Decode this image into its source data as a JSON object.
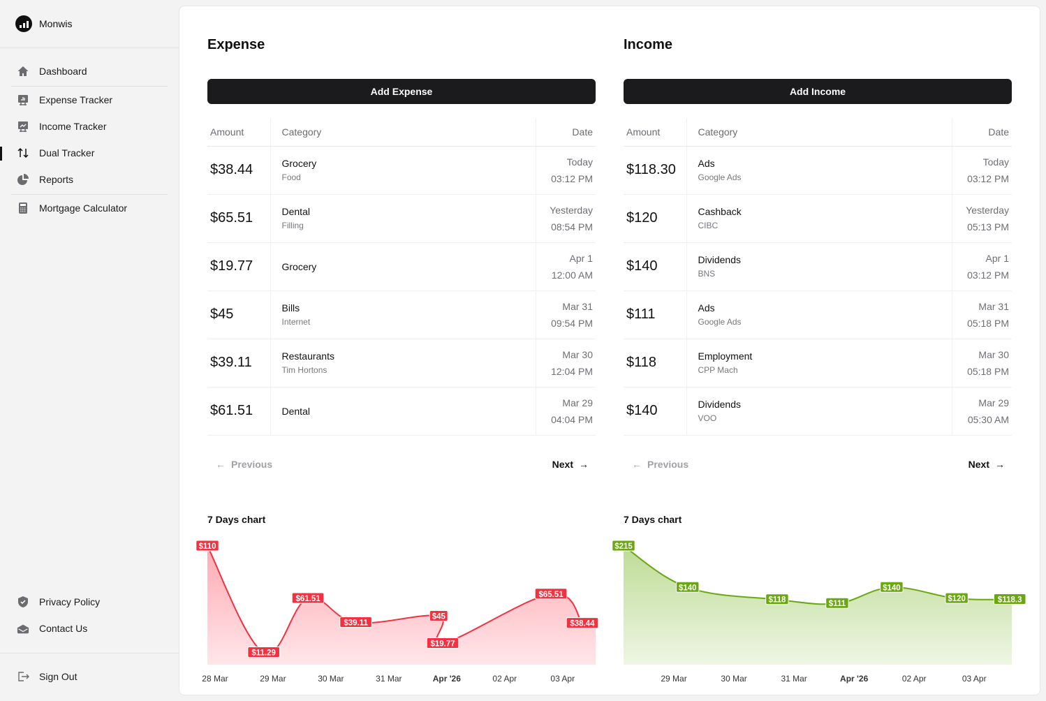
{
  "app": {
    "name": "Monwis"
  },
  "sidebar": {
    "items": [
      {
        "label": "Dashboard",
        "icon": "home-icon"
      },
      {
        "label": "Expense Tracker",
        "icon": "bar-chart-board-icon"
      },
      {
        "label": "Income Tracker",
        "icon": "line-chart-board-icon"
      },
      {
        "label": "Dual Tracker",
        "icon": "arrows-up-down-icon",
        "active": true
      },
      {
        "label": "Reports",
        "icon": "pie-chart-icon"
      },
      {
        "label": "Mortgage Calculator",
        "icon": "calculator-icon"
      }
    ],
    "footer": [
      {
        "label": "Privacy Policy",
        "icon": "shield-check-icon"
      },
      {
        "label": "Contact Us",
        "icon": "envelope-open-icon"
      }
    ],
    "sign_out": {
      "label": "Sign Out",
      "icon": "sign-out-icon"
    }
  },
  "expense": {
    "title": "Expense",
    "add_label": "Add Expense",
    "columns": [
      "Amount",
      "Category",
      "Date"
    ],
    "rows": [
      {
        "amount": "$38.44",
        "category": "Grocery",
        "sub": "Food",
        "date": "Today",
        "time": "03:12 PM"
      },
      {
        "amount": "$65.51",
        "category": "Dental",
        "sub": "Filling",
        "date": "Yesterday",
        "time": "08:54 PM"
      },
      {
        "amount": "$19.77",
        "category": "Grocery",
        "sub": "",
        "date": "Apr 1",
        "time": "12:00 AM"
      },
      {
        "amount": "$45",
        "category": "Bills",
        "sub": "Internet",
        "date": "Mar 31",
        "time": "09:54 PM"
      },
      {
        "amount": "$39.11",
        "category": "Restaurants",
        "sub": "Tim Hortons",
        "date": "Mar 30",
        "time": "12:04 PM"
      },
      {
        "amount": "$61.51",
        "category": "Dental",
        "sub": "",
        "date": "Mar 29",
        "time": "04:04 PM"
      }
    ],
    "previous": "Previous",
    "next": "Next",
    "chart_title": "7 Days chart"
  },
  "income": {
    "title": "Income",
    "add_label": "Add Income",
    "columns": [
      "Amount",
      "Category",
      "Date"
    ],
    "rows": [
      {
        "amount": "$118.30",
        "category": "Ads",
        "sub": "Google Ads",
        "date": "Today",
        "time": "03:12 PM"
      },
      {
        "amount": "$120",
        "category": "Cashback",
        "sub": "CIBC",
        "date": "Yesterday",
        "time": "05:13 PM"
      },
      {
        "amount": "$140",
        "category": "Dividends",
        "sub": "BNS",
        "date": "Apr 1",
        "time": "03:12 PM"
      },
      {
        "amount": "$111",
        "category": "Ads",
        "sub": "Google Ads",
        "date": "Mar 31",
        "time": "05:18 PM"
      },
      {
        "amount": "$118",
        "category": "Employment",
        "sub": "CPP Mach",
        "date": "Mar 30",
        "time": "05:18 PM"
      },
      {
        "amount": "$140",
        "category": "Dividends",
        "sub": "VOO",
        "date": "Mar 29",
        "time": "05:30 AM"
      }
    ],
    "previous": "Previous",
    "next": "Next",
    "chart_title": "7 Days chart"
  },
  "chart_data": [
    {
      "type": "area",
      "title": "7 Days chart",
      "color": "#f5303f",
      "fill_top": "#ffa9b1",
      "fill_bottom": "#ffe6e9",
      "xlim": [
        "2026-03-27T20:50",
        "2026-04-03T13:40"
      ],
      "ylim": [
        0,
        110
      ],
      "grid": false,
      "ticks": [
        {
          "x": "2026-03-28T00:00",
          "label": "28 Mar"
        },
        {
          "x": "2026-03-29T00:00",
          "label": "29 Mar"
        },
        {
          "x": "2026-03-30T00:00",
          "label": "30 Mar"
        },
        {
          "x": "2026-03-31T00:00",
          "label": "31 Mar"
        },
        {
          "x": "2026-04-01T00:00",
          "label": "Apr '26",
          "bold": true
        },
        {
          "x": "2026-04-02T00:00",
          "label": "02 Apr"
        },
        {
          "x": "2026-04-03T00:00",
          "label": "03 Apr"
        }
      ],
      "points": [
        {
          "x": "2026-03-27T20:50",
          "y": 110,
          "label": "$110"
        },
        {
          "x": "2026-03-28T20:10",
          "y": 11.29,
          "label": "$11.29"
        },
        {
          "x": "2026-03-29T14:30",
          "y": 61.51,
          "label": "$61.51"
        },
        {
          "x": "2026-03-30T10:20",
          "y": 39.11,
          "label": "$39.11"
        },
        {
          "x": "2026-03-31T20:40",
          "y": 45,
          "label": "$45"
        },
        {
          "x": "2026-03-31T22:20",
          "y": 19.77,
          "label": "$19.77"
        },
        {
          "x": "2026-04-02T19:10",
          "y": 65.51,
          "label": "$65.51"
        },
        {
          "x": "2026-04-03T08:10",
          "y": 38.44,
          "label": "$38.44"
        }
      ]
    },
    {
      "type": "area",
      "title": "7 Days chart",
      "color": "#6aa811",
      "fill_top": "#bddb95",
      "fill_bottom": "#eef6e4",
      "xlim": [
        "2026-03-28T03:54",
        "2026-04-03T15:00"
      ],
      "ylim": [
        0,
        215
      ],
      "grid": false,
      "ticks": [
        {
          "x": "2026-03-29T00:00",
          "label": "29 Mar"
        },
        {
          "x": "2026-03-30T00:00",
          "label": "30 Mar"
        },
        {
          "x": "2026-03-31T00:00",
          "label": "31 Mar"
        },
        {
          "x": "2026-04-01T00:00",
          "label": "Apr '26",
          "bold": true
        },
        {
          "x": "2026-04-02T00:00",
          "label": "02 Apr"
        },
        {
          "x": "2026-04-03T00:00",
          "label": "03 Apr"
        }
      ],
      "points": [
        {
          "x": "2026-03-28T03:54",
          "y": 215,
          "label": "$215"
        },
        {
          "x": "2026-03-29T05:30",
          "y": 140,
          "label": "$140"
        },
        {
          "x": "2026-03-30T17:15",
          "y": 118,
          "label": "$118"
        },
        {
          "x": "2026-03-31T17:15",
          "y": 111,
          "label": "$111"
        },
        {
          "x": "2026-04-01T15:00",
          "y": 140,
          "label": "$140"
        },
        {
          "x": "2026-04-02T17:00",
          "y": 120,
          "label": "$120"
        },
        {
          "x": "2026-04-03T15:00",
          "y": 118.3,
          "label": "$118.3"
        }
      ]
    }
  ]
}
